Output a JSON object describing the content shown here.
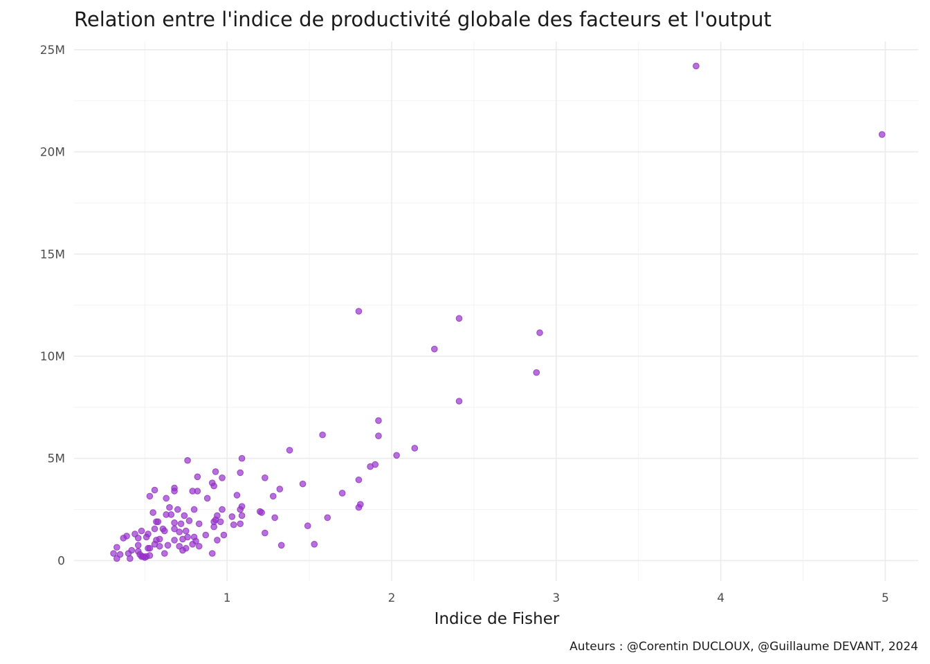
{
  "chart_data": {
    "type": "scatter",
    "title": "Relation entre l'indice de productivité globale des facteurs et l'output",
    "xlabel": "Indice de Fisher",
    "ylabel": "",
    "caption": "Auteurs : @Corentin DUCLOUX, @Guillaume DEVANT, 2024",
    "xlim": [
      0.07,
      5.2
    ],
    "ylim": [
      -1000000,
      25400000
    ],
    "x_ticks": [
      {
        "value": 1,
        "label": "1"
      },
      {
        "value": 2,
        "label": "2"
      },
      {
        "value": 3,
        "label": "3"
      },
      {
        "value": 4,
        "label": "4"
      },
      {
        "value": 5,
        "label": "5"
      }
    ],
    "y_ticks": [
      {
        "value": 0,
        "label": "0"
      },
      {
        "value": 5000000,
        "label": "5M"
      },
      {
        "value": 10000000,
        "label": "10M"
      },
      {
        "value": 15000000,
        "label": "15M"
      },
      {
        "value": 20000000,
        "label": "20M"
      },
      {
        "value": 25000000,
        "label": "25M"
      }
    ],
    "grid": true,
    "point_color": "#9932CC",
    "points": [
      [
        3.85,
        24200000
      ],
      [
        4.98,
        20850000
      ],
      [
        1.8,
        12200000
      ],
      [
        2.41,
        11850000
      ],
      [
        2.26,
        10350000
      ],
      [
        2.9,
        11150000
      ],
      [
        2.88,
        9200000
      ],
      [
        2.41,
        7800000
      ],
      [
        1.92,
        6850000
      ],
      [
        1.92,
        6100000
      ],
      [
        1.58,
        6150000
      ],
      [
        2.14,
        5500000
      ],
      [
        2.03,
        5150000
      ],
      [
        1.9,
        4700000
      ],
      [
        1.87,
        4600000
      ],
      [
        1.38,
        5400000
      ],
      [
        1.09,
        5000000
      ],
      [
        0.76,
        4900000
      ],
      [
        0.93,
        4350000
      ],
      [
        0.82,
        4100000
      ],
      [
        0.97,
        4050000
      ],
      [
        1.08,
        4300000
      ],
      [
        1.23,
        4050000
      ],
      [
        1.8,
        3950000
      ],
      [
        1.46,
        3750000
      ],
      [
        0.91,
        3800000
      ],
      [
        0.92,
        3650000
      ],
      [
        1.32,
        3500000
      ],
      [
        1.28,
        3150000
      ],
      [
        1.7,
        3300000
      ],
      [
        0.56,
        3450000
      ],
      [
        0.68,
        3550000
      ],
      [
        0.68,
        3400000
      ],
      [
        0.79,
        3400000
      ],
      [
        0.82,
        3400000
      ],
      [
        0.53,
        3150000
      ],
      [
        0.63,
        3050000
      ],
      [
        0.88,
        3050000
      ],
      [
        1.06,
        3200000
      ],
      [
        1.81,
        2750000
      ],
      [
        1.8,
        2600000
      ],
      [
        1.09,
        2650000
      ],
      [
        1.08,
        2500000
      ],
      [
        0.97,
        2500000
      ],
      [
        0.65,
        2600000
      ],
      [
        0.7,
        2500000
      ],
      [
        0.8,
        2500000
      ],
      [
        1.2,
        2400000
      ],
      [
        1.21,
        2350000
      ],
      [
        0.55,
        2350000
      ],
      [
        0.63,
        2250000
      ],
      [
        0.66,
        2250000
      ],
      [
        0.74,
        2200000
      ],
      [
        0.94,
        2200000
      ],
      [
        1.09,
        2200000
      ],
      [
        1.29,
        2100000
      ],
      [
        1.61,
        2100000
      ],
      [
        0.57,
        1900000
      ],
      [
        0.58,
        1900000
      ],
      [
        0.68,
        1850000
      ],
      [
        0.72,
        1800000
      ],
      [
        0.77,
        1950000
      ],
      [
        0.83,
        1800000
      ],
      [
        0.92,
        1900000
      ],
      [
        0.93,
        2000000
      ],
      [
        0.96,
        1900000
      ],
      [
        1.03,
        2150000
      ],
      [
        1.08,
        1800000
      ],
      [
        1.04,
        1750000
      ],
      [
        1.49,
        1700000
      ],
      [
        0.92,
        1650000
      ],
      [
        0.61,
        1550000
      ],
      [
        0.68,
        1550000
      ],
      [
        0.75,
        1450000
      ],
      [
        0.71,
        1400000
      ],
      [
        0.62,
        1450000
      ],
      [
        0.56,
        1550000
      ],
      [
        0.48,
        1450000
      ],
      [
        0.44,
        1300000
      ],
      [
        0.52,
        1300000
      ],
      [
        0.39,
        1200000
      ],
      [
        0.37,
        1100000
      ],
      [
        0.46,
        1100000
      ],
      [
        0.51,
        1150000
      ],
      [
        0.57,
        1000000
      ],
      [
        0.59,
        1050000
      ],
      [
        0.68,
        1000000
      ],
      [
        0.73,
        1050000
      ],
      [
        0.76,
        1150000
      ],
      [
        0.8,
        1150000
      ],
      [
        0.87,
        1250000
      ],
      [
        0.98,
        1250000
      ],
      [
        1.23,
        1350000
      ],
      [
        0.94,
        1000000
      ],
      [
        0.81,
        950000
      ],
      [
        0.56,
        800000
      ],
      [
        0.59,
        700000
      ],
      [
        0.64,
        750000
      ],
      [
        0.71,
        700000
      ],
      [
        0.79,
        800000
      ],
      [
        0.83,
        700000
      ],
      [
        0.75,
        600000
      ],
      [
        0.73,
        500000
      ],
      [
        1.33,
        750000
      ],
      [
        1.53,
        800000
      ],
      [
        0.91,
        350000
      ],
      [
        0.46,
        750000
      ],
      [
        0.52,
        600000
      ],
      [
        0.53,
        600000
      ],
      [
        0.42,
        500000
      ],
      [
        0.46,
        450000
      ],
      [
        0.4,
        350000
      ],
      [
        0.33,
        650000
      ],
      [
        0.31,
        350000
      ],
      [
        0.35,
        300000
      ],
      [
        0.33,
        100000
      ],
      [
        0.41,
        100000
      ],
      [
        0.48,
        200000
      ],
      [
        0.5,
        150000
      ],
      [
        0.51,
        200000
      ],
      [
        0.53,
        250000
      ],
      [
        0.47,
        300000
      ],
      [
        0.62,
        350000
      ],
      [
        0.49,
        200000
      ]
    ]
  }
}
